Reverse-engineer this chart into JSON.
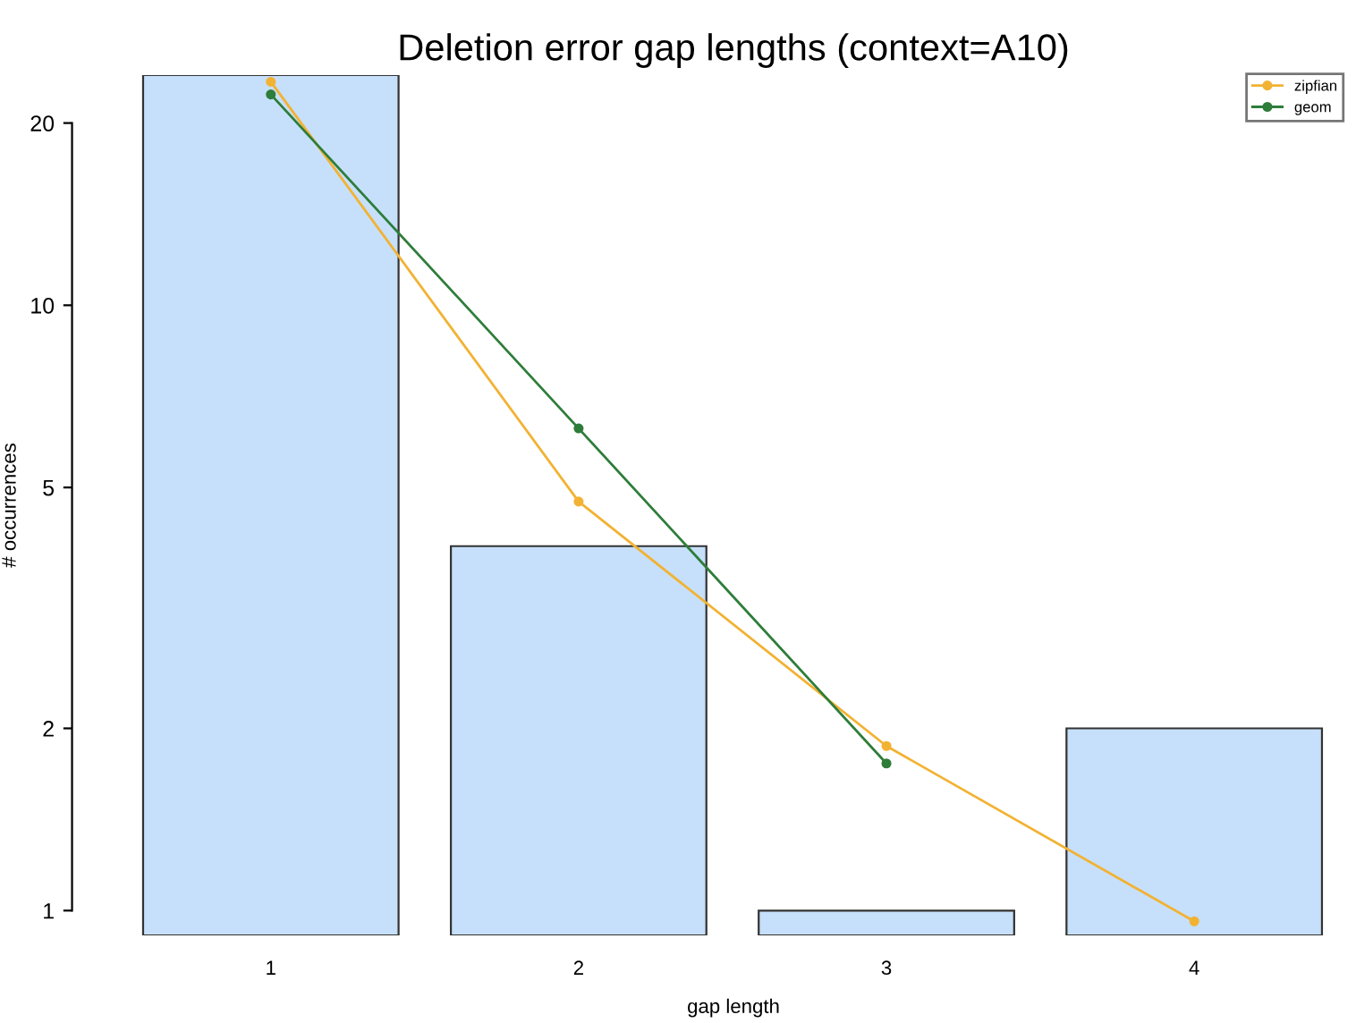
{
  "chart_data": {
    "type": "bar",
    "title": "Deletion error gap lengths (context=A10)",
    "xlabel": "gap length",
    "ylabel": "# occurrences",
    "categories": [
      "1",
      "2",
      "3",
      "4"
    ],
    "values": [
      24,
      4,
      1,
      2
    ],
    "color": "#c6e0fb",
    "log": true,
    "ylim": [
      0.91,
      24
    ],
    "yticks": [
      1,
      2,
      5,
      10,
      20
    ],
    "grid": false,
    "legend": "top right",
    "marker": "circle",
    "series": [
      {
        "name": "zipfian",
        "type": "line",
        "color": "#f2b233",
        "values": [
          23.4,
          4.74,
          1.87,
          0.96
        ]
      },
      {
        "name": "geom",
        "type": "line",
        "color": "#2e7d3a",
        "values": [
          22.3,
          6.26,
          1.75,
          null
        ]
      }
    ]
  }
}
